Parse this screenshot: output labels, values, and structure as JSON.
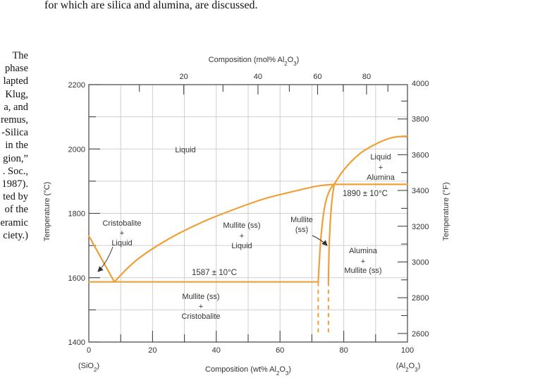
{
  "intro_text": "for which are silica and alumina, are discussed.",
  "caption_lines": [
    "The",
    "phase",
    "lapted",
    "Klug,",
    "a, and",
    "remus,",
    "-Silica",
    "in the",
    "gion,”",
    ". Soc.,",
    "1987).",
    "ted by",
    "of the",
    "eramic",
    "ciety.)"
  ],
  "chart_data": {
    "type": "phase-diagram",
    "title": "",
    "xlabel": "Composition (wt% Al2O3)",
    "top_xlabel": "Composition (mol% Al2O3)",
    "ylabel_left": "Temperature (°C)",
    "ylabel_right": "Temperature (°F)",
    "xlim": [
      0,
      100
    ],
    "ylim": [
      1400,
      2200
    ],
    "x_ticks": [
      0,
      20,
      40,
      60,
      80,
      100
    ],
    "x_end_labels": {
      "left": "(SiO2)",
      "right": "(Al2O3)"
    },
    "y_ticks_c": [
      1400,
      1600,
      1800,
      2000,
      2200
    ],
    "top_ticks_mol": [
      10,
      20,
      30,
      40,
      50,
      60,
      70,
      80,
      90
    ],
    "top_tick_labels_mol": [
      20,
      40,
      60,
      80
    ],
    "right_ticks_f": [
      2600,
      2800,
      3000,
      3200,
      3400,
      3600,
      3800,
      4000
    ],
    "grid": true,
    "line_color": "#f0a038",
    "series": [
      {
        "key": "liquidus_sio2",
        "points": [
          [
            0,
            1730
          ],
          [
            8,
            1587
          ]
        ]
      },
      {
        "key": "liquidus_mullite",
        "points": [
          [
            8,
            1587
          ],
          [
            15,
            1655
          ],
          [
            25,
            1720
          ],
          [
            35,
            1770
          ],
          [
            45,
            1810
          ],
          [
            55,
            1845
          ],
          [
            65,
            1870
          ],
          [
            72,
            1885
          ],
          [
            77,
            1890
          ]
        ]
      },
      {
        "key": "liquidus_alumina",
        "points": [
          [
            77,
            1890
          ],
          [
            80,
            1935
          ],
          [
            85,
            1985
          ],
          [
            90,
            2015
          ],
          [
            95,
            2035
          ],
          [
            100,
            2040
          ]
        ]
      },
      {
        "key": "eutectic_1587",
        "points": [
          [
            0,
            1587
          ],
          [
            72,
            1587
          ]
        ]
      },
      {
        "key": "eutectic_1890",
        "points": [
          [
            77,
            1890
          ],
          [
            100,
            1890
          ]
        ]
      },
      {
        "key": "mullite_left_boundary",
        "points": [
          [
            72,
            1587
          ],
          [
            72.8,
            1720
          ],
          [
            74,
            1820
          ],
          [
            75.5,
            1870
          ],
          [
            77,
            1890
          ]
        ]
      },
      {
        "key": "mullite_right_boundary",
        "points": [
          [
            75.2,
            1587
          ],
          [
            75.5,
            1720
          ],
          [
            76.2,
            1830
          ],
          [
            77,
            1890
          ]
        ]
      },
      {
        "key": "mullite_left_dashed",
        "points": [
          [
            72,
            1587
          ],
          [
            72,
            1430
          ]
        ],
        "dashed": true
      },
      {
        "key": "mullite_right_dashed",
        "points": [
          [
            75.2,
            1587
          ],
          [
            75.2,
            1430
          ]
        ],
        "dashed": true
      }
    ],
    "annotations": {
      "eutectic_low": "1587 ± 10°C",
      "eutectic_high": "1890 ± 10°C"
    },
    "regions": [
      {
        "key": "liquid",
        "lines": [
          "Liquid"
        ]
      },
      {
        "key": "liquid_alumina",
        "lines": [
          "Liquid",
          "+",
          "Alumina"
        ]
      },
      {
        "key": "cristobalite_liquid",
        "lines": [
          "Cristobalite",
          "+",
          "Liquid"
        ]
      },
      {
        "key": "mullite_liquid",
        "lines": [
          "Mullite (ss)",
          "+",
          "Liquid"
        ]
      },
      {
        "key": "mullite_ss",
        "lines": [
          "Mullite",
          "(ss)"
        ]
      },
      {
        "key": "alumina_mullite",
        "lines": [
          "Alumina",
          "+",
          "Mullite (ss)"
        ]
      },
      {
        "key": "mullite_cristobalite",
        "lines": [
          "Mullite (ss)",
          "+",
          "Cristobalite"
        ]
      }
    ]
  }
}
